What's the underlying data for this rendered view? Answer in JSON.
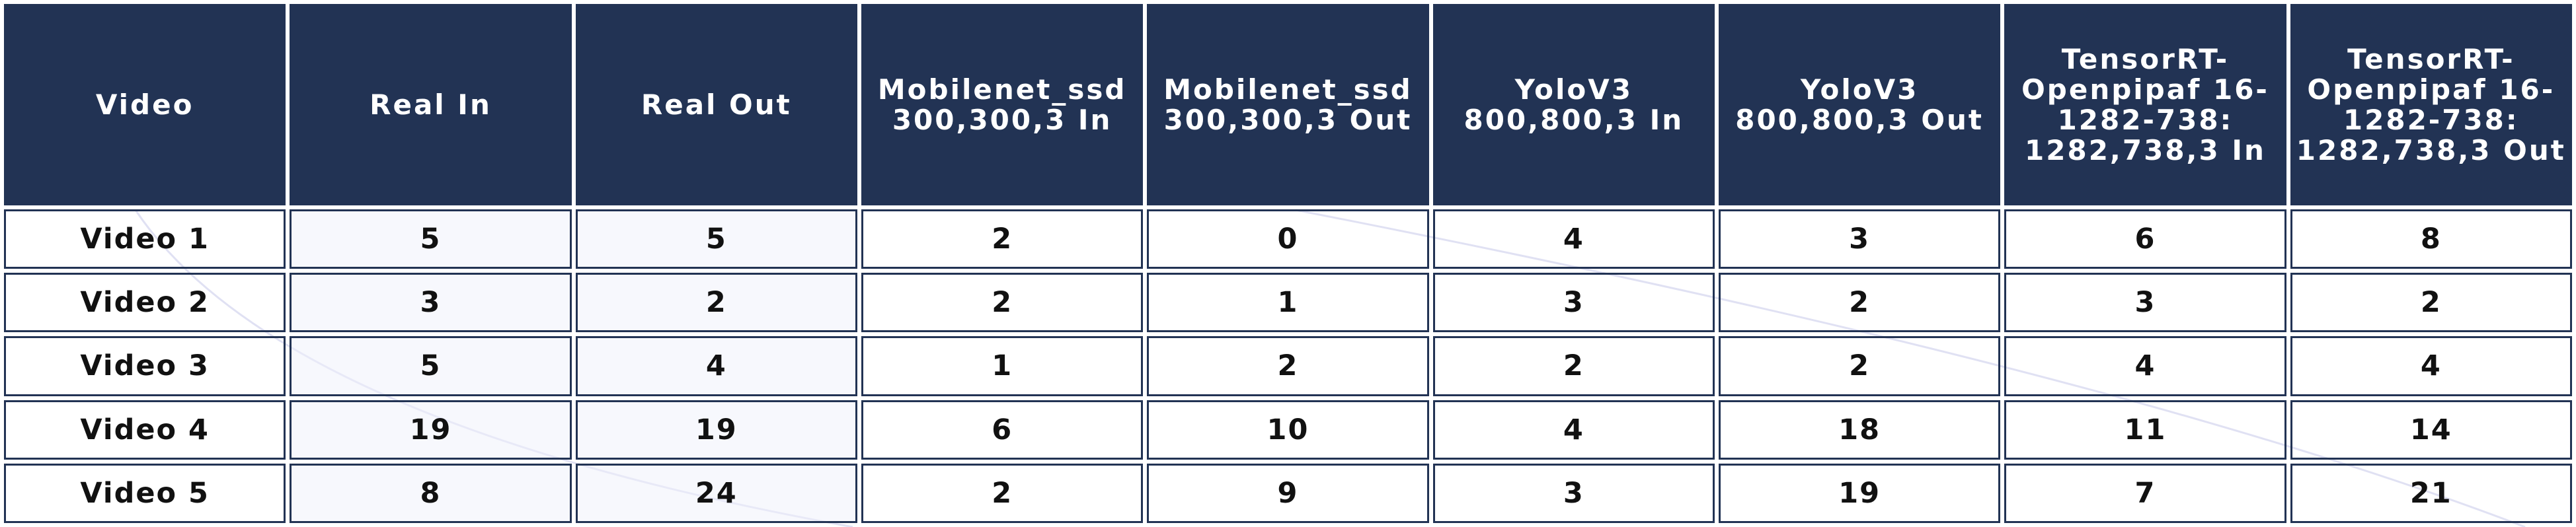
{
  "chart_data": {
    "type": "table",
    "columns": [
      "Video",
      "Real In",
      "Real Out",
      "Mobilenet_ssd 300,300,3 In",
      "Mobilenet_ssd 300,300,3 Out",
      "YoloV3 800,800,3 In",
      "YoloV3 800,800,3 Out",
      "TensorRT-Openpipaf 16-1282-738: 1282,738,3 In",
      "TensorRT-Openpipaf 16-1282-738: 1282,738,3 Out"
    ],
    "rows": [
      [
        "Video 1",
        "5",
        "5",
        "2",
        "0",
        "4",
        "3",
        "6",
        "8"
      ],
      [
        "Video 2",
        "3",
        "2",
        "2",
        "1",
        "3",
        "2",
        "3",
        "2"
      ],
      [
        "Video 3",
        "5",
        "4",
        "1",
        "2",
        "2",
        "2",
        "4",
        "4"
      ],
      [
        "Video 4",
        "19",
        "19",
        "6",
        "10",
        "4",
        "18",
        "11",
        "14"
      ],
      [
        "Video 5",
        "8",
        "24",
        "2",
        "9",
        "3",
        "19",
        "7",
        "21"
      ]
    ],
    "colors": {
      "header_bg": "#223354",
      "header_text": "#ffffff",
      "border": "#223354",
      "cell_text": "#111111"
    }
  }
}
